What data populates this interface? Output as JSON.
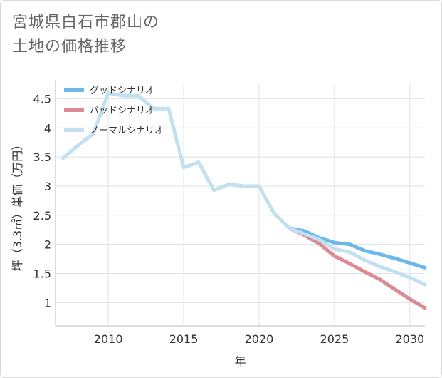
{
  "title_lines": [
    "宮城県白石市郡山の",
    "土地の価格推移"
  ],
  "chart_data": {
    "type": "line",
    "xlabel": "年",
    "ylabel": "坪（3.3㎡）単価（万円）",
    "xlim": [
      2006.5,
      2031
    ],
    "ylim": [
      0.6,
      4.75
    ],
    "xticks": [
      2010,
      2015,
      2020,
      2025,
      2030
    ],
    "yticks": [
      1,
      1.5,
      2,
      2.5,
      3,
      3.5,
      4,
      4.5
    ],
    "ytick_labels": [
      "1",
      "1.5",
      "2",
      "2.5",
      "3",
      "3.5",
      "4",
      "4.5"
    ],
    "grid": true,
    "legend_position": "top-left",
    "series": [
      {
        "name": "グッドシナリオ",
        "color": "#6cb8ea",
        "x": [
          2022,
          2023,
          2024,
          2025,
          2026,
          2027,
          2028,
          2029,
          2030,
          2031
        ],
        "y": [
          2.28,
          2.23,
          2.11,
          2.03,
          2.0,
          1.89,
          1.83,
          1.76,
          1.68,
          1.6
        ]
      },
      {
        "name": "バッドシナリオ",
        "color": "#dc8b92",
        "x": [
          2022,
          2023,
          2024,
          2025,
          2026,
          2027,
          2028,
          2029,
          2030,
          2031
        ],
        "y": [
          2.28,
          2.16,
          2.01,
          1.8,
          1.67,
          1.53,
          1.4,
          1.23,
          1.06,
          0.91
        ]
      },
      {
        "name": "ノーマルシナリオ",
        "color": "#c3e0f0",
        "x": [
          2007,
          2008,
          2009,
          2010,
          2011,
          2012,
          2013,
          2014,
          2015,
          2016,
          2017,
          2018,
          2019,
          2020,
          2021,
          2022,
          2023,
          2024,
          2025,
          2026,
          2027,
          2028,
          2029,
          2030,
          2031
        ],
        "y": [
          3.48,
          3.7,
          3.9,
          4.6,
          4.55,
          4.55,
          4.33,
          4.33,
          3.32,
          3.41,
          2.93,
          3.03,
          3.0,
          3.0,
          2.53,
          2.28,
          2.18,
          2.08,
          1.92,
          1.87,
          1.73,
          1.62,
          1.53,
          1.43,
          1.31
        ]
      }
    ]
  }
}
